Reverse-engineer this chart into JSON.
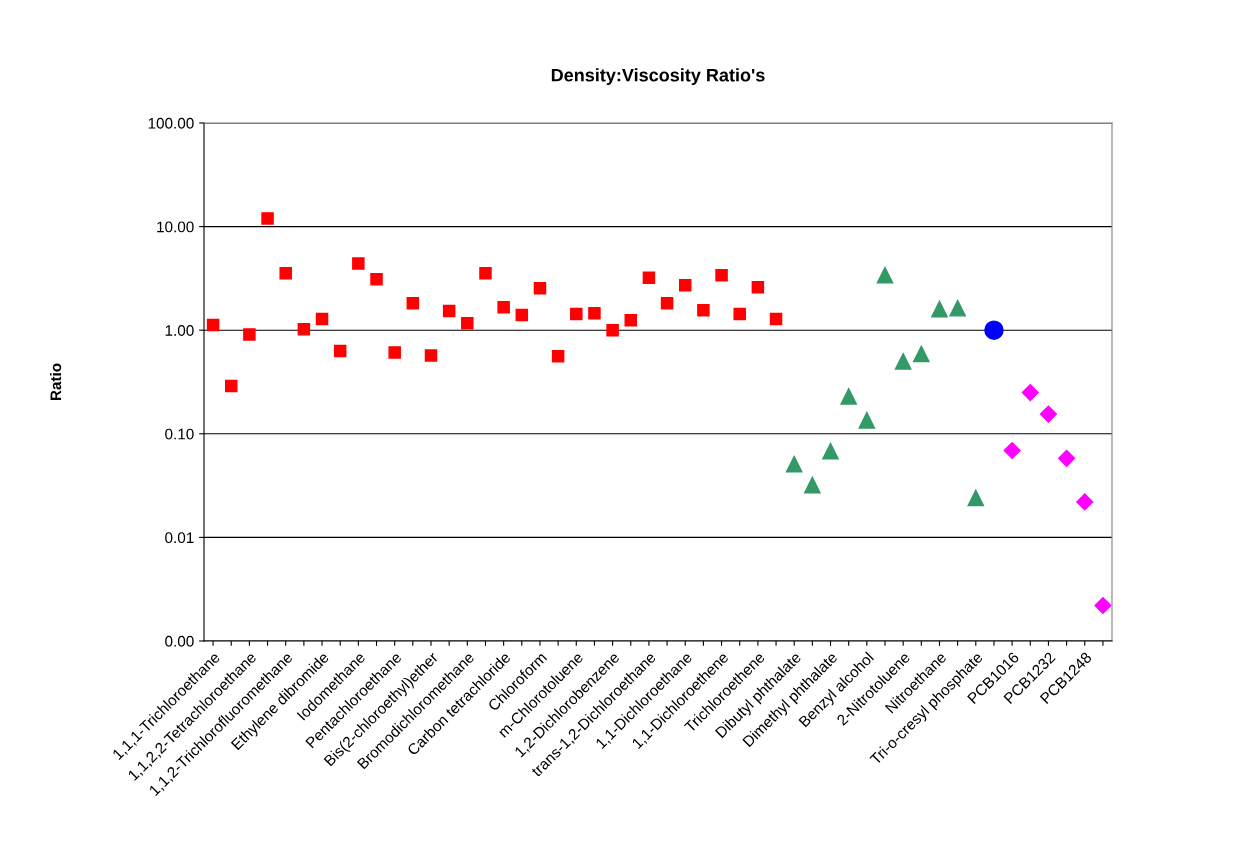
{
  "chart_data": {
    "type": "scatter",
    "title": "Density:Viscosity Ratio's",
    "ylabel": "Ratio",
    "categories": [
      "1,1,1-Trichloroethane",
      null,
      "1,1,2,2-Tetrachloroethane",
      null,
      "1,1,2-Trichlorofluoromethane",
      null,
      "Ethylene dibromide",
      null,
      "Iodomethane",
      null,
      "Pentachloroethane",
      null,
      "Bis(2-chloroethyl)ether",
      null,
      "Bromodichloromethane",
      null,
      "Carbon tetrachloride",
      null,
      "Chloroform",
      null,
      "m-Chlorotoluene",
      null,
      "1,2-Dichlorobenzene",
      null,
      "trans-1,2-Dichloroethane",
      null,
      "1,1-Dichloroethane",
      null,
      "1,1-Dichloroethene",
      null,
      "Trichloroethene",
      null,
      "Dibutyl phthalate",
      null,
      "Dimethyl phthalate",
      null,
      "Benzyl alcohol",
      null,
      "2-Nitrotoluene",
      null,
      "Nitroethane",
      null,
      "Tri-o-cresyl phosphate",
      null,
      "PCB1016",
      null,
      "PCB1232",
      null,
      "PCB1248",
      null
    ],
    "series": [
      {
        "color": "#ff0000",
        "marker": "square",
        "values": [
          1.12,
          0.29,
          0.91,
          12,
          3.55,
          1.02,
          1.28,
          0.63,
          4.4,
          3.1,
          0.61,
          1.82,
          0.57,
          1.53,
          1.17,
          3.55,
          1.67,
          1.4,
          2.54,
          0.56,
          1.43,
          1.46,
          1.0,
          1.25,
          3.2,
          1.82,
          2.72,
          1.56,
          3.4,
          1.43,
          2.6,
          1.28,
          null,
          null,
          null,
          null,
          null,
          null,
          null,
          null,
          null,
          null,
          null,
          null,
          null,
          null,
          null,
          null,
          null,
          null
        ]
      },
      {
        "color": "#339966",
        "marker": "triangle",
        "values": [
          null,
          null,
          null,
          null,
          null,
          null,
          null,
          null,
          null,
          null,
          null,
          null,
          null,
          null,
          null,
          null,
          null,
          null,
          null,
          null,
          null,
          null,
          null,
          null,
          null,
          null,
          null,
          null,
          null,
          null,
          null,
          null,
          0.051,
          0.032,
          0.068,
          0.23,
          0.135,
          3.4,
          0.5,
          0.59,
          1.6,
          1.63,
          0.024,
          null,
          null,
          null,
          null,
          null,
          null,
          null
        ]
      },
      {
        "color": "#0000ff",
        "marker": "circle",
        "values": [
          null,
          null,
          null,
          null,
          null,
          null,
          null,
          null,
          null,
          null,
          null,
          null,
          null,
          null,
          null,
          null,
          null,
          null,
          null,
          null,
          null,
          null,
          null,
          null,
          null,
          null,
          null,
          null,
          null,
          null,
          null,
          null,
          null,
          null,
          null,
          null,
          null,
          null,
          null,
          null,
          null,
          null,
          null,
          1.0,
          null,
          null,
          null,
          null,
          null,
          null
        ]
      },
      {
        "color": "#ff00ff",
        "marker": "diamond",
        "values": [
          null,
          null,
          null,
          null,
          null,
          null,
          null,
          null,
          null,
          null,
          null,
          null,
          null,
          null,
          null,
          null,
          null,
          null,
          null,
          null,
          null,
          null,
          null,
          null,
          null,
          null,
          null,
          null,
          null,
          null,
          null,
          null,
          null,
          null,
          null,
          null,
          null,
          null,
          null,
          null,
          null,
          null,
          null,
          null,
          0.069,
          0.25,
          0.155,
          0.058,
          0.022,
          0.0022
        ]
      }
    ],
    "log": "y",
    "ylim": [
      0.001,
      100
    ],
    "yticks": [
      {
        "value": 0.001,
        "label": "0.00"
      },
      {
        "value": 0.01,
        "label": "0.01"
      },
      {
        "value": 0.1,
        "label": "0.10"
      },
      {
        "value": 1,
        "label": "1.00"
      },
      {
        "value": 10,
        "label": "10.00"
      },
      {
        "value": 100,
        "label": "100.00"
      }
    ],
    "grid": "y",
    "legend": false
  }
}
